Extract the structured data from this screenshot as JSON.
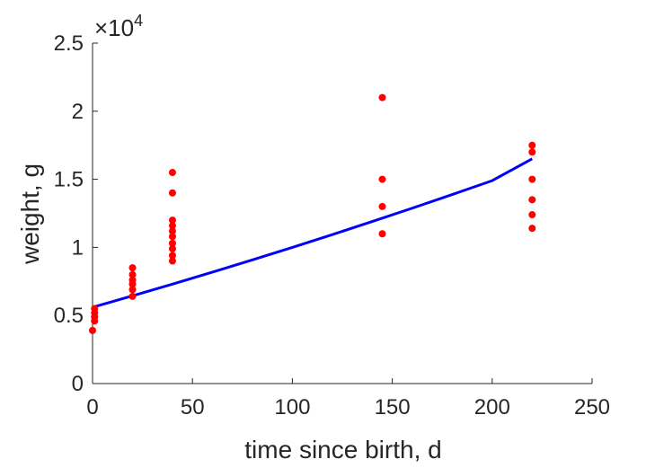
{
  "chart_data": {
    "type": "scatter",
    "xlabel": "time since birth, d",
    "ylabel": "weight, g",
    "xlim": [
      0,
      250
    ],
    "ylim": [
      0,
      25000
    ],
    "x_ticks": [
      0,
      50,
      100,
      150,
      200,
      250
    ],
    "x_tick_labels": [
      "0",
      "50",
      "100",
      "150",
      "200",
      "250"
    ],
    "y_ticks": [
      0,
      5000,
      10000,
      15000,
      20000,
      25000
    ],
    "y_tick_labels": [
      "0",
      "0.5",
      "1",
      "1.5",
      "2",
      "2.5"
    ],
    "y_exponent": {
      "base": "×10",
      "power": "4"
    },
    "grid": false,
    "series": [
      {
        "kind": "points",
        "color": "#ff0000",
        "points": [
          [
            0,
            3900
          ],
          [
            1,
            4600
          ],
          [
            1,
            4900
          ],
          [
            1,
            5200
          ],
          [
            1,
            5500
          ],
          [
            20,
            6400
          ],
          [
            20,
            6900
          ],
          [
            20,
            7300
          ],
          [
            20,
            7600
          ],
          [
            20,
            8000
          ],
          [
            20,
            8500
          ],
          [
            40,
            9000
          ],
          [
            40,
            9400
          ],
          [
            40,
            9900
          ],
          [
            40,
            10300
          ],
          [
            40,
            10800
          ],
          [
            40,
            11200
          ],
          [
            40,
            11600
          ],
          [
            40,
            12000
          ],
          [
            40,
            14000
          ],
          [
            40,
            15500
          ],
          [
            145,
            11000
          ],
          [
            145,
            13000
          ],
          [
            145,
            15000
          ],
          [
            145,
            21000
          ],
          [
            220,
            11400
          ],
          [
            220,
            12400
          ],
          [
            220,
            13500
          ],
          [
            220,
            15000
          ],
          [
            220,
            17000
          ],
          [
            220,
            17500
          ]
        ]
      },
      {
        "kind": "line",
        "color": "#0000ff",
        "x": [
          0,
          20,
          40,
          60,
          80,
          100,
          120,
          140,
          160,
          180,
          200,
          220
        ],
        "y": [
          5600,
          6440,
          7300,
          8180,
          9080,
          10000,
          10940,
          11900,
          12880,
          13880,
          14900,
          16500
        ]
      }
    ]
  }
}
